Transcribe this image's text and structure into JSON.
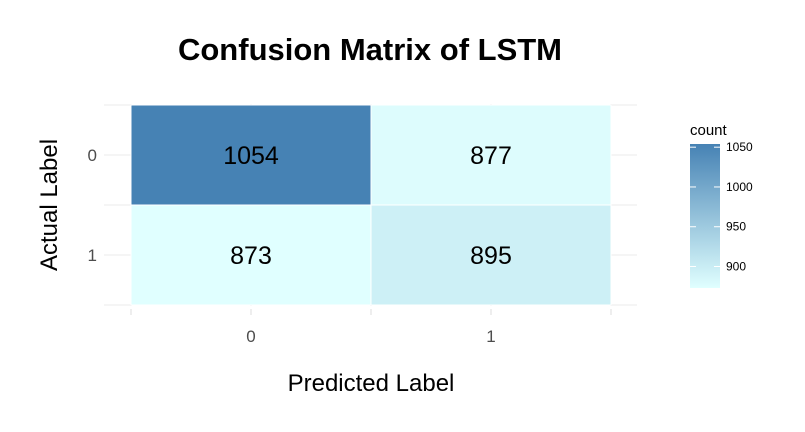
{
  "chart_data": {
    "type": "heatmap",
    "title": "Confusion Matrix of LSTM",
    "xlabel": "Predicted Label",
    "ylabel": "Actual Label",
    "x_categories": [
      "0",
      "1"
    ],
    "y_categories": [
      "0",
      "1"
    ],
    "cells": [
      {
        "actual": "0",
        "predicted": "0",
        "value": 1054
      },
      {
        "actual": "0",
        "predicted": "1",
        "value": 877
      },
      {
        "actual": "1",
        "predicted": "0",
        "value": 873
      },
      {
        "actual": "1",
        "predicted": "1",
        "value": 895
      }
    ],
    "legend": {
      "title": "count",
      "ticks": [
        900,
        950,
        1000,
        1050
      ],
      "placement": "right"
    },
    "color_low": "#e0ffff",
    "color_high": "#4682b4",
    "grid": true
  }
}
